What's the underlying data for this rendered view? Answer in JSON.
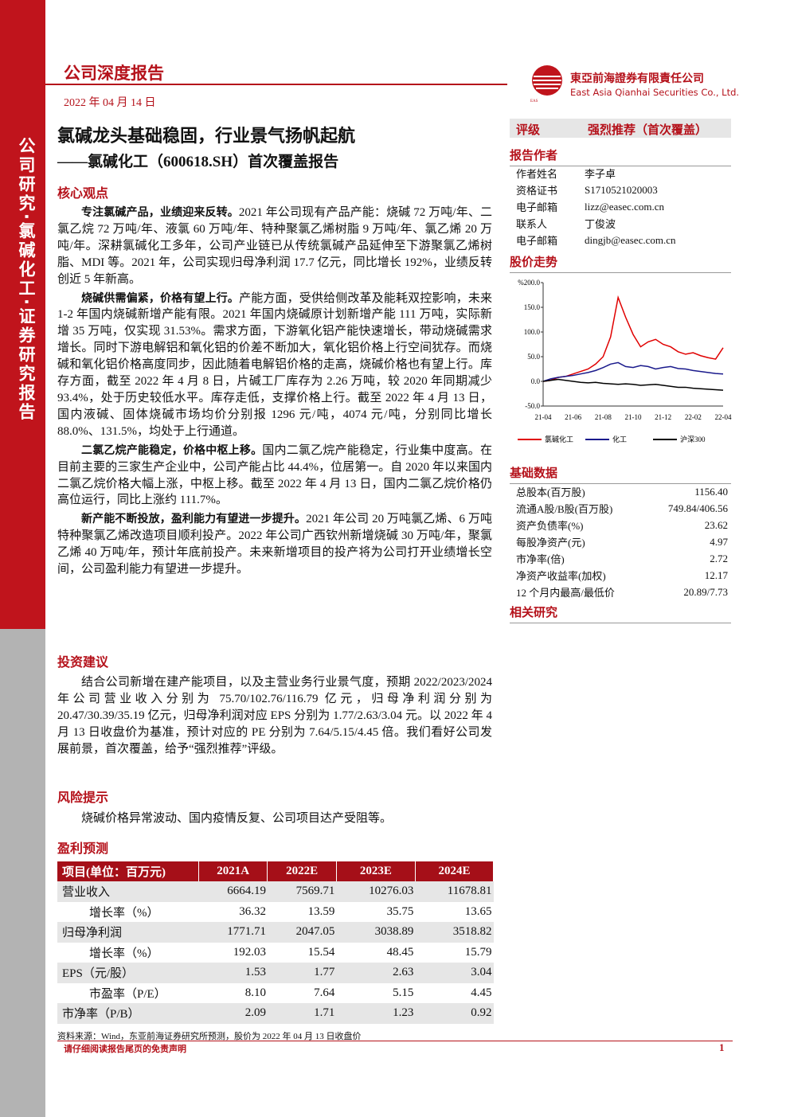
{
  "sidebar": "公司研究·氯碱化工·证券研究报告",
  "header": {
    "report_type": "公司深度报告",
    "date": "2022 年 04 月 14 日",
    "company_cn": "東亞前海證券有限責任公司",
    "company_en": "East Asia Qianhai Securities Co., Ltd."
  },
  "title": {
    "line1": "氯碱龙头基础稳固，行业景气扬帆起航",
    "line2": "——氯碱化工（600618.SH）首次覆盖报告"
  },
  "core_view": {
    "heading": "核心观点",
    "paragraphs": [
      {
        "lead": "专注氯碱产品，业绩迎来反转。",
        "text": "2021 年公司现有产品产能：烧碱 72 万吨/年、二氯乙烷 72 万吨/年、液氯 60 万吨/年、特种聚氯乙烯树脂 9 万吨/年、氯乙烯 20 万吨/年。深耕氯碱化工多年，公司产业链已从传统氯碱产品延伸至下游聚氯乙烯树脂、MDI 等。2021 年，公司实现归母净利润 17.7 亿元，同比增长 192%，业绩反转创近 5 年新高。"
      },
      {
        "lead": "烧碱供需偏紧，价格有望上行。",
        "text": "产能方面，受供给侧改革及能耗双控影响，未来 1-2 年国内烧碱新增产能有限。2021 年国内烧碱原计划新增产能 111 万吨，实际新增 35 万吨，仅实现 31.53%。需求方面，下游氧化铝产能快速增长，带动烧碱需求增长。同时下游电解铝和氧化铝的价差不断加大，氧化铝价格上行空间犹存。而烧碱和氧化铝价格高度同步，因此随着电解铝价格的走高，烧碱价格也有望上行。库存方面，截至 2022 年 4 月 8 日，片碱工厂库存为 2.26 万吨，较 2020 年同期减少 93.4%，处于历史较低水平。库存走低，支撑价格上行。截至 2022 年 4 月 13 日，国内液碱、固体烧碱市场均价分别报 1296 元/吨，4074 元/吨，分别同比增长 88.0%、131.5%，均处于上行通道。"
      },
      {
        "lead": "二氯乙烷产能稳定，价格中枢上移。",
        "text": "国内二氯乙烷产能稳定，行业集中度高。在目前主要的三家生产企业中，公司产能占比 44.4%，位居第一。自 2020 年以来国内二氯乙烷价格大幅上涨，中枢上移。截至 2022 年 4 月 13 日，国内二氯乙烷价格仍高位运行，同比上涨约 111.7%。"
      },
      {
        "lead": "新产能不断投放，盈利能力有望进一步提升。",
        "text": "2021 年公司 20 万吨氯乙烯、6 万吨特种聚氯乙烯改造项目顺利投产。2022 年公司广西钦州新增烧碱 30 万吨/年，聚氯乙烯 40 万吨/年，预计年底前投产。未来新增项目的投产将为公司打开业绩增长空间，公司盈利能力有望进一步提升。"
      }
    ]
  },
  "investment": {
    "heading": "投资建议",
    "text": "结合公司新增在建产能项目，以及主营业务行业景气度，预期 2022/2023/2024 年公司营业收入分别为 75.70/102.76/116.79 亿元，归母净利润分别为 20.47/30.39/35.19 亿元，归母净利润对应 EPS 分别为 1.77/2.63/3.04 元。以 2022 年 4 月 13 日收盘价为基准，预计对应的 PE 分别为 7.64/5.15/4.45 倍。我们看好公司发展前景，首次覆盖，给予“强烈推荐”评级。"
  },
  "risk": {
    "heading": "风险提示",
    "text": "烧碱价格异常波动、国内疫情反复、公司项目达产受阻等。"
  },
  "forecast": {
    "heading": "盈利预测",
    "columns": [
      "项目(单位：百万元)",
      "2021A",
      "2022E",
      "2023E",
      "2024E"
    ],
    "rows": [
      [
        "营业收入",
        "6664.19",
        "7569.71",
        "10276.03",
        "11678.81"
      ],
      [
        "增长率（%）",
        "36.32",
        "13.59",
        "35.75",
        "13.65"
      ],
      [
        "归母净利润",
        "1771.71",
        "2047.05",
        "3038.89",
        "3518.82"
      ],
      [
        "增长率（%）",
        "192.03",
        "15.54",
        "48.45",
        "15.79"
      ],
      [
        "EPS（元/股）",
        "1.53",
        "1.77",
        "2.63",
        "3.04"
      ],
      [
        "市盈率（P/E）",
        "8.10",
        "7.64",
        "5.15",
        "4.45"
      ],
      [
        "市净率（P/B）",
        "2.09",
        "1.71",
        "1.23",
        "0.92"
      ]
    ]
  },
  "rating": {
    "label": "评级",
    "value": "强烈推荐（首次覆盖）"
  },
  "authors": {
    "heading": "报告作者",
    "rows": [
      [
        "作者姓名",
        "李子卓"
      ],
      [
        "资格证书",
        "S1710521020003"
      ],
      [
        "电子邮箱",
        "lizz@easec.com.cn"
      ],
      [
        "联系人",
        "丁俊波"
      ],
      [
        "电子邮箱",
        "dingjb@easec.com.cn"
      ]
    ]
  },
  "stock_heading": "股价走势",
  "chart_data": {
    "type": "line",
    "categories": [
      "21-04",
      null,
      null,
      null,
      "21-06",
      null,
      null,
      null,
      "21-08",
      null,
      null,
      null,
      "21-10",
      null,
      null,
      null,
      "21-12",
      null,
      null,
      null,
      "22-02",
      null,
      null,
      null,
      "22-04"
    ],
    "series": [
      {
        "name": "氯碱化工",
        "color": "#e00000",
        "values": [
          0,
          2,
          8,
          10,
          15,
          20,
          25,
          35,
          50,
          90,
          170,
          130,
          95,
          70,
          80,
          85,
          75,
          70,
          60,
          55,
          58,
          52,
          48,
          45,
          68
        ]
      },
      {
        "name": "化工",
        "color": "#1a1a8c",
        "values": [
          0,
          5,
          8,
          10,
          12,
          15,
          18,
          22,
          28,
          35,
          38,
          30,
          28,
          32,
          30,
          25,
          28,
          30,
          26,
          25,
          22,
          20,
          18,
          16,
          15
        ]
      },
      {
        "name": "沪深300",
        "color": "#000000",
        "values": [
          0,
          2,
          4,
          2,
          0,
          -2,
          -3,
          -2,
          -4,
          -5,
          -6,
          -5,
          -6,
          -8,
          -7,
          -6,
          -8,
          -10,
          -12,
          -12,
          -14,
          -15,
          -16,
          -17,
          -18
        ]
      }
    ],
    "ylim": [
      -50,
      200
    ],
    "yticks": [
      {
        "value": -50,
        "label": "-50.0"
      },
      {
        "value": 0,
        "label": "0.0"
      },
      {
        "value": 50,
        "label": "50.0"
      },
      {
        "value": 100,
        "label": "100.0"
      },
      {
        "value": 150,
        "label": "150.0"
      },
      {
        "value": 200,
        "label": "%200.0"
      }
    ]
  },
  "basic_data": {
    "heading": "基础数据",
    "rows": [
      [
        "总股本(百万股)",
        "1156.40"
      ],
      [
        "流通A股/B股(百万股)",
        "749.84/406.56"
      ],
      [
        "资产负债率(%)",
        "23.62"
      ],
      [
        "每股净资产(元)",
        "4.97"
      ],
      [
        "市净率(倍)",
        "2.72"
      ],
      [
        "净资产收益率(加权)",
        "12.17"
      ],
      [
        "12 个月内最高/最低价",
        "20.89/7.73"
      ]
    ]
  },
  "related_heading": "相关研究",
  "footer": {
    "source": "资料来源：Wind，东亚前海证券研究所预测，股价为 2022 年 04 月 13 日收盘价",
    "disclaimer": "请仔细阅读报告尾页的免责声明",
    "page": "1"
  }
}
